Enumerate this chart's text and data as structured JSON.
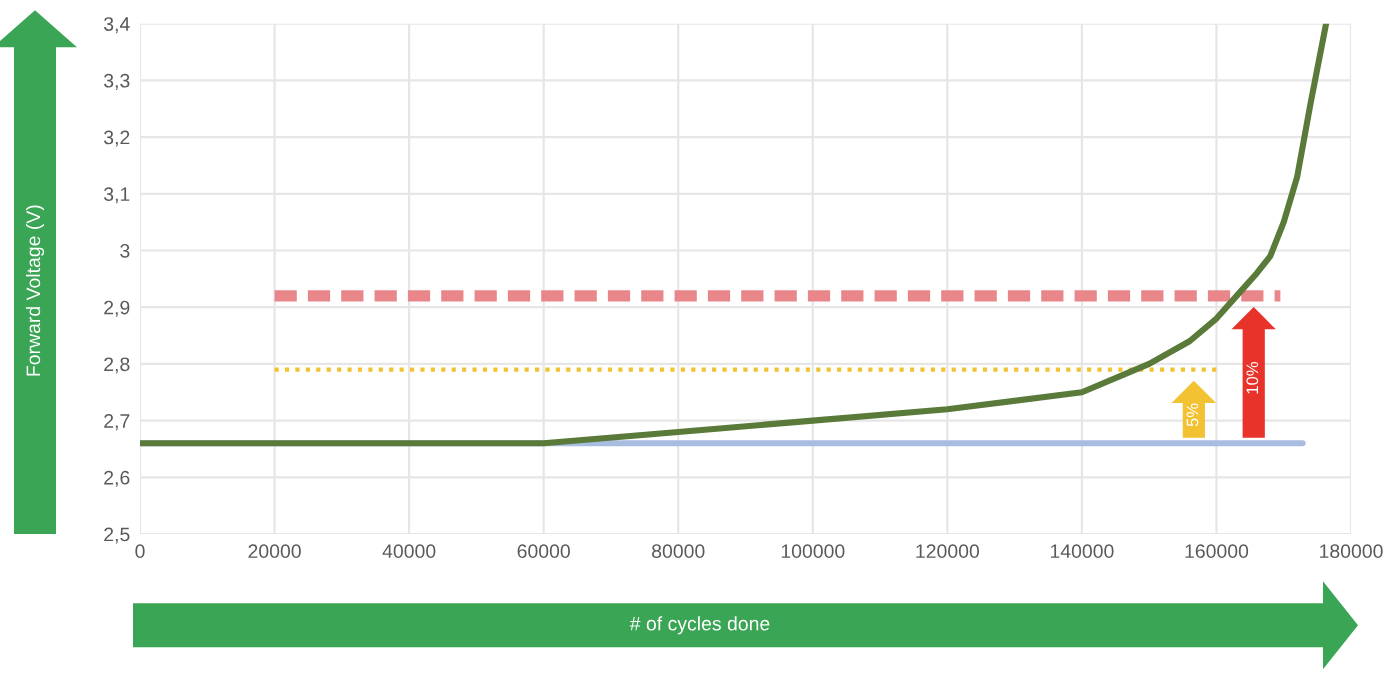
{
  "chart_data": {
    "type": "line",
    "xlabel": "# of cycles done",
    "ylabel": "Forward Voltage (V)",
    "series": [
      {
        "color": "#a9bde0",
        "line_style": "solid",
        "x": [
          0,
          172800
        ],
        "values": [
          2.66,
          2.66
        ]
      },
      {
        "color": "#f2c232",
        "line_style": "dotted",
        "x": [
          20000,
          160600
        ],
        "values": [
          2.79,
          2.79
        ]
      },
      {
        "color": "#e8868a",
        "line_style": "dashed",
        "x": [
          20000,
          169500
        ],
        "values": [
          2.92,
          2.92
        ]
      },
      {
        "color": "#5a7a3a",
        "line_style": "solid",
        "x": [
          0,
          60000,
          80000,
          100000,
          120000,
          140000,
          150000,
          156000,
          160000,
          163000,
          166000,
          168000,
          170000,
          172000,
          174000,
          176300
        ],
        "values": [
          2.66,
          2.66,
          2.68,
          2.7,
          2.72,
          2.75,
          2.8,
          2.84,
          2.88,
          2.92,
          2.96,
          2.99,
          3.05,
          3.13,
          3.26,
          3.4
        ]
      }
    ],
    "annotations": [
      "5%",
      "10%"
    ],
    "xlim": [
      0,
      180000
    ],
    "xticks": [
      0,
      20000,
      40000,
      60000,
      80000,
      100000,
      120000,
      140000,
      160000,
      180000
    ],
    "ylim": [
      2.5,
      3.4
    ],
    "yticks": [
      {
        "value": 2.5,
        "label": "2,5"
      },
      {
        "value": 2.6,
        "label": "2,6"
      },
      {
        "value": 2.7,
        "label": "2,7"
      },
      {
        "value": 2.8,
        "label": "2,8"
      },
      {
        "value": 2.9,
        "label": "2,9"
      },
      3,
      {
        "value": 3.1,
        "label": "3,1"
      },
      {
        "value": 3.2,
        "label": "3,2"
      },
      {
        "value": 3.3,
        "label": "3,3"
      },
      {
        "value": 3.4,
        "label": "3,4"
      }
    ],
    "grid": true,
    "marker": "none"
  }
}
